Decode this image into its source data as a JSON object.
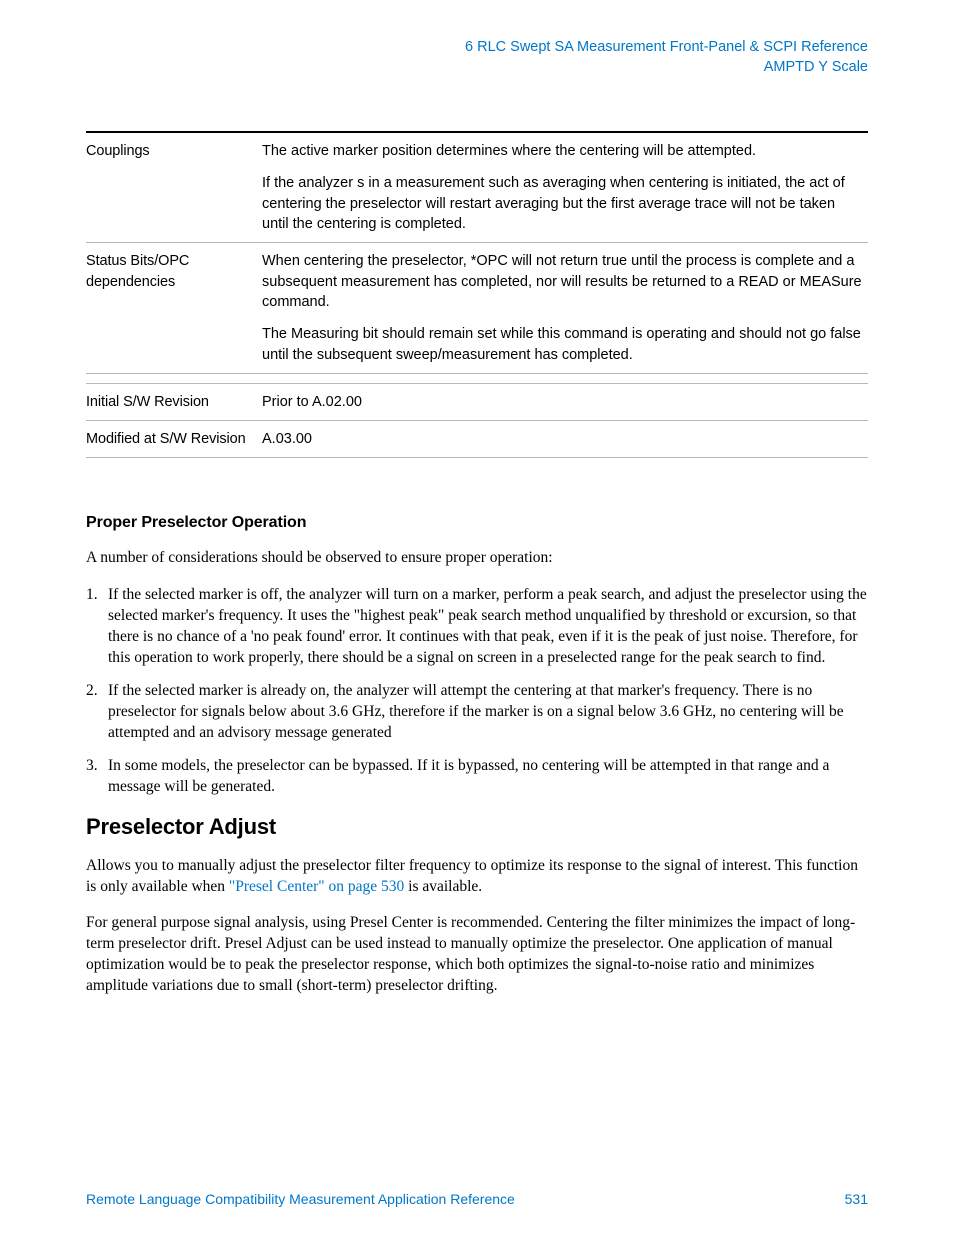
{
  "header": {
    "line1": "6  RLC Swept SA Measurement Front-Panel & SCPI Reference",
    "line2": "AMPTD Y Scale"
  },
  "table": {
    "rows": [
      {
        "label": "Couplings",
        "paras": [
          "The active marker position determines where the centering will be attempted.",
          "If the analyzer s in a measurement such as averaging when centering is initiated, the act of centering the preselector will restart averaging but the first average trace will not be taken until the centering is completed."
        ],
        "topbar": true
      },
      {
        "label": "Status Bits/OPC dependencies",
        "paras": [
          "When centering the preselector, *OPC will not return true until the process is complete and a subsequent measurement has completed, nor will results be returned to a READ or MEASure command.",
          "The Measuring bit should remain set while this command is operating and should not go false until the subsequent sweep/measurement has completed."
        ]
      },
      {
        "spacer": true
      },
      {
        "label": "Initial S/W Revision",
        "paras": [
          "Prior to A.02.00"
        ]
      },
      {
        "label": "Modified at S/W Revision",
        "paras": [
          "A.03.00"
        ]
      }
    ]
  },
  "section1": {
    "heading": "Proper Preselector Operation",
    "intro": "A number of considerations should be observed to ensure proper operation:",
    "items": [
      "If the selected marker is off, the analyzer will turn on a marker, perform a peak search, and adjust the preselector using the selected marker's frequency. It uses the \"highest peak\" peak search method unqualified by threshold or excursion, so that there is no chance of a 'no peak found' error. It continues with that peak, even if it is the peak of just noise.  Therefore, for this operation to work properly, there should be a signal on screen in a preselected range for the peak search to find.",
      "If the selected marker is already on, the analyzer will attempt the centering at that marker's frequency.  There is no preselector for signals below about 3.6 GHz, therefore if the marker is on a signal below 3.6 GHz, no centering will be attempted and an advisory message generated",
      "In some models, the preselector can be bypassed.  If it is bypassed, no centering will be attempted in that range and a message will be generated."
    ]
  },
  "section2": {
    "heading": "Preselector Adjust",
    "p1_pre": "Allows you to manually adjust the preselector filter frequency to optimize its response to the signal of interest. This function is only available when ",
    "p1_link": "\"Presel Center\" on page 530",
    "p1_post": " is available.",
    "p2": "For general purpose signal analysis, using Presel Center is recommended. Centering the filter minimizes the impact of long-term preselector drift. Presel Adjust can be used instead to manually optimize the preselector. One application of manual optimization would be to peak the preselector response, which both optimizes the signal-to-noise ratio and minimizes amplitude variations due to small (short-term) preselector drifting."
  },
  "footer": {
    "title": "Remote Language Compatibility Measurement Application Reference",
    "page": "531"
  }
}
